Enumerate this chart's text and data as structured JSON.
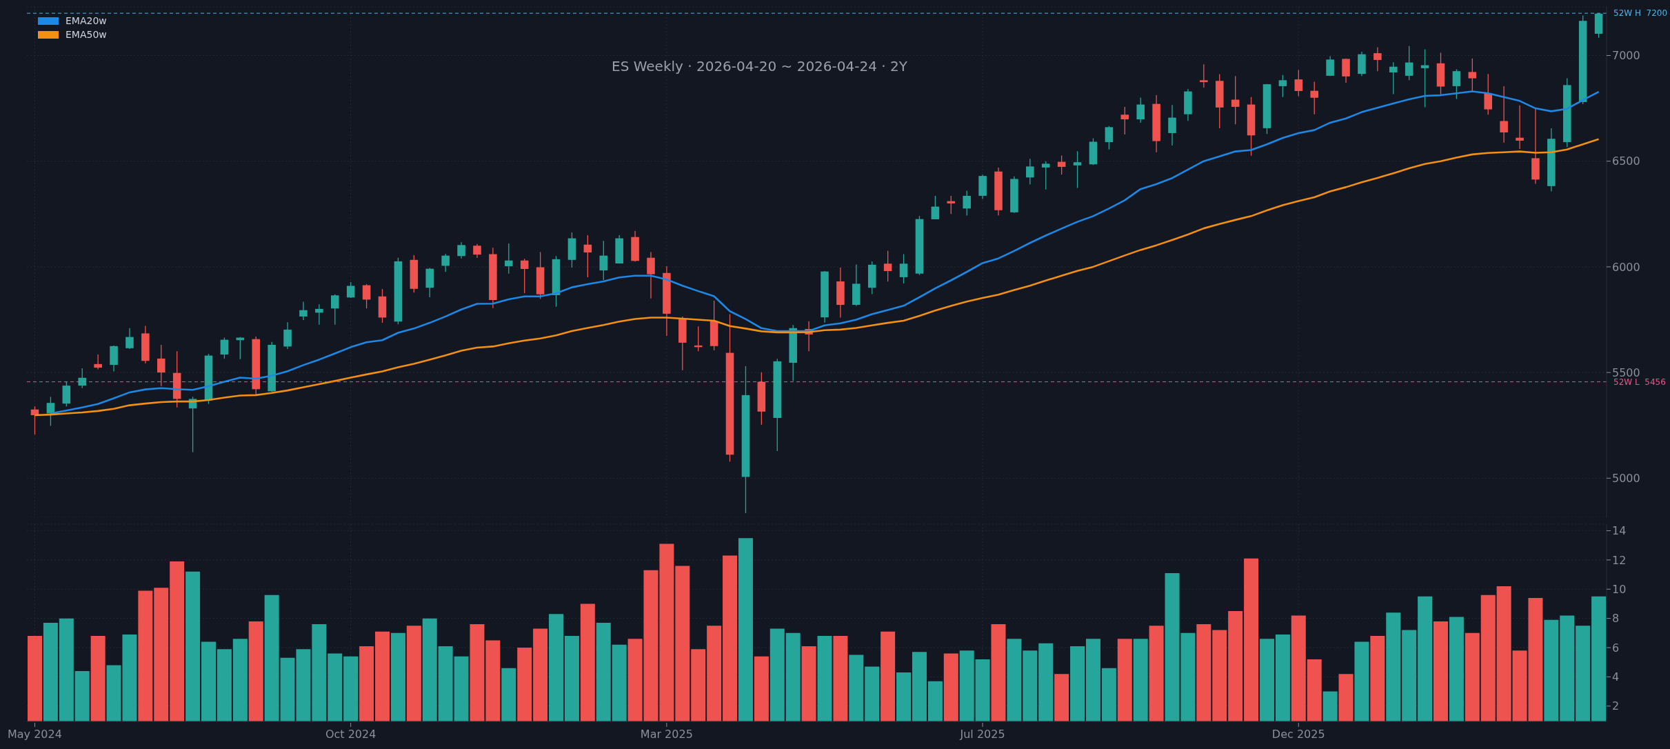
{
  "chart_data": [
    {
      "type": "candlestick",
      "title": "ES Weekly · 2026-04-20 ~ 2026-04-24 · 2Y",
      "categories": [
        null,
        null,
        null,
        null,
        null,
        null,
        null,
        null,
        null,
        null,
        null,
        null,
        null,
        null,
        null,
        null,
        null,
        null,
        null,
        null,
        null,
        null,
        null,
        null,
        null,
        null,
        null,
        null,
        null,
        null,
        null,
        null,
        null,
        null,
        null,
        null,
        null,
        null,
        null,
        null,
        null,
        null,
        null,
        null,
        null,
        null,
        null,
        null,
        null,
        null,
        null,
        null,
        null,
        null,
        null,
        null,
        null,
        null,
        null,
        null,
        null,
        null,
        null,
        null,
        null,
        null,
        null,
        null,
        null,
        null,
        null,
        null,
        null,
        null,
        null,
        null,
        null,
        null,
        null,
        null,
        null,
        null,
        null,
        null,
        null,
        null,
        null,
        null,
        null,
        null,
        null,
        null,
        null,
        null,
        null,
        null,
        null,
        null,
        null,
        null
      ],
      "ohlc": [
        [
          5325,
          5340,
          5206,
          5298
        ],
        [
          5306,
          5385,
          5248,
          5356
        ],
        [
          5353,
          5456,
          5340,
          5438
        ],
        [
          5438,
          5520,
          5426,
          5475
        ],
        [
          5540,
          5585,
          5515,
          5523
        ],
        [
          5536,
          5628,
          5505,
          5625
        ],
        [
          5615,
          5710,
          5611,
          5668
        ],
        [
          5685,
          5721,
          5543,
          5555
        ],
        [
          5566,
          5631,
          5436,
          5500
        ],
        [
          5498,
          5601,
          5335,
          5375
        ],
        [
          5330,
          5385,
          5123,
          5375
        ],
        [
          5368,
          5588,
          5351,
          5580
        ],
        [
          5585,
          5665,
          5565,
          5655
        ],
        [
          5653,
          5668,
          5563,
          5665
        ],
        [
          5658,
          5670,
          5396,
          5421
        ],
        [
          5411,
          5645,
          5408,
          5631
        ],
        [
          5623,
          5738,
          5611,
          5703
        ],
        [
          5765,
          5835,
          5748,
          5795
        ],
        [
          5783,
          5823,
          5726,
          5801
        ],
        [
          5803,
          5870,
          5726,
          5865
        ],
        [
          5855,
          5928,
          5853,
          5910
        ],
        [
          5913,
          5918,
          5803,
          5845
        ],
        [
          5860,
          5895,
          5735,
          5760
        ],
        [
          5741,
          6043,
          5728,
          6026
        ],
        [
          6033,
          6055,
          5878,
          5896
        ],
        [
          5901,
          5995,
          5856,
          5991
        ],
        [
          6005,
          6061,
          5976,
          6053
        ],
        [
          6051,
          6116,
          6040,
          6103
        ],
        [
          6100,
          6108,
          6043,
          6058
        ],
        [
          6060,
          6090,
          5805,
          5843
        ],
        [
          6003,
          6111,
          5968,
          6030
        ],
        [
          6030,
          6038,
          5876,
          5990
        ],
        [
          5998,
          6070,
          5848,
          5870
        ],
        [
          5866,
          6051,
          5811,
          6036
        ],
        [
          6033,
          6163,
          5996,
          6135
        ],
        [
          6105,
          6150,
          5951,
          6068
        ],
        [
          5983,
          6123,
          5938,
          6053
        ],
        [
          6016,
          6150,
          6015,
          6135
        ],
        [
          6141,
          6170,
          6025,
          6028
        ],
        [
          6043,
          6070,
          5850,
          5965
        ],
        [
          5971,
          6003,
          5673,
          5778
        ],
        [
          5755,
          5765,
          5511,
          5641
        ],
        [
          5628,
          5718,
          5601,
          5620
        ],
        [
          5743,
          5840,
          5605,
          5625
        ],
        [
          5593,
          5776,
          5078,
          5111
        ],
        [
          5006,
          5530,
          4835,
          5393
        ],
        [
          5456,
          5501,
          5253,
          5315
        ],
        [
          5285,
          5565,
          5128,
          5553
        ],
        [
          5546,
          5725,
          5460,
          5710
        ],
        [
          5706,
          5743,
          5601,
          5680
        ],
        [
          5761,
          5980,
          5736,
          5978
        ],
        [
          5931,
          5996,
          5760,
          5820
        ],
        [
          5820,
          6011,
          5815,
          5920
        ],
        [
          5901,
          6026,
          5871,
          6010
        ],
        [
          6015,
          6076,
          5930,
          5980
        ],
        [
          5951,
          6060,
          5921,
          6015
        ],
        [
          5968,
          6241,
          5961,
          6226
        ],
        [
          6225,
          6336,
          6225,
          6285
        ],
        [
          6311,
          6336,
          6250,
          6300
        ],
        [
          6276,
          6360,
          6243,
          6336
        ],
        [
          6336,
          6436,
          6321,
          6430
        ],
        [
          6451,
          6470,
          6243,
          6268
        ],
        [
          6258,
          6428,
          6255,
          6416
        ],
        [
          6423,
          6511,
          6390,
          6475
        ],
        [
          6470,
          6500,
          6366,
          6488
        ],
        [
          6497,
          6527,
          6437,
          6473
        ],
        [
          6480,
          6547,
          6373,
          6495
        ],
        [
          6485,
          6608,
          6482,
          6592
        ],
        [
          6590,
          6666,
          6555,
          6661
        ],
        [
          6720,
          6757,
          6626,
          6698
        ],
        [
          6698,
          6801,
          6682,
          6768
        ],
        [
          6771,
          6812,
          6542,
          6595
        ],
        [
          6633,
          6766,
          6574,
          6706
        ],
        [
          6722,
          6842,
          6691,
          6830
        ],
        [
          6883,
          6958,
          6848,
          6874
        ],
        [
          6880,
          6912,
          6656,
          6754
        ],
        [
          6791,
          6903,
          6674,
          6757
        ],
        [
          6768,
          6803,
          6526,
          6622
        ],
        [
          6656,
          6865,
          6629,
          6864
        ],
        [
          6855,
          6908,
          6803,
          6883
        ],
        [
          6887,
          6931,
          6807,
          6832
        ],
        [
          6833,
          6876,
          6722,
          6800
        ],
        [
          6904,
          6997,
          6903,
          6981
        ],
        [
          6984,
          6986,
          6871,
          6901
        ],
        [
          6913,
          7018,
          6903,
          7006
        ],
        [
          7011,
          7039,
          6926,
          6979
        ],
        [
          6920,
          6968,
          6817,
          6947
        ],
        [
          6904,
          7045,
          6883,
          6967
        ],
        [
          6940,
          7029,
          6755,
          6954
        ],
        [
          6963,
          7013,
          6816,
          6853
        ],
        [
          6855,
          6935,
          6794,
          6926
        ],
        [
          6922,
          6986,
          6830,
          6892
        ],
        [
          6821,
          6913,
          6720,
          6745
        ],
        [
          6690,
          6855,
          6588,
          6636
        ],
        [
          6611,
          6764,
          6558,
          6597
        ],
        [
          6514,
          6750,
          6393,
          6413
        ],
        [
          6382,
          6656,
          6357,
          6606
        ],
        [
          6590,
          6892,
          6567,
          6860
        ],
        [
          6780,
          7189,
          6770,
          7164
        ],
        [
          7103,
          7200,
          7084,
          7198
        ]
      ],
      "colors": [
        "#ef5350",
        "#26a69a",
        "#26a69a",
        "#26a69a",
        "#ef5350",
        "#26a69a",
        "#26a69a",
        "#ef5350",
        "#ef5350",
        "#ef5350",
        "#26a69a",
        "#26a69a",
        "#26a69a",
        "#26a69a",
        "#ef5350",
        "#26a69a",
        "#26a69a",
        "#26a69a",
        "#26a69a",
        "#26a69a",
        "#26a69a",
        "#ef5350",
        "#ef5350",
        "#26a69a",
        "#ef5350",
        "#26a69a",
        "#26a69a",
        "#26a69a",
        "#ef5350",
        "#ef5350",
        "#26a69a",
        "#ef5350",
        "#ef5350",
        "#26a69a",
        "#26a69a",
        "#ef5350",
        "#26a69a",
        "#26a69a",
        "#ef5350",
        "#ef5350",
        "#ef5350",
        "#ef5350",
        "#ef5350",
        "#ef5350",
        "#ef5350",
        "#26a69a",
        "#ef5350",
        "#26a69a",
        "#26a69a",
        "#ef5350",
        "#26a69a",
        "#ef5350",
        "#26a69a",
        "#26a69a",
        "#ef5350",
        "#26a69a",
        "#26a69a",
        "#26a69a",
        "#ef5350",
        "#26a69a",
        "#26a69a",
        "#ef5350",
        "#26a69a",
        "#26a69a",
        "#26a69a",
        "#ef5350",
        "#26a69a",
        "#26a69a",
        "#26a69a",
        "#ef5350",
        "#26a69a",
        "#ef5350",
        "#26a69a",
        "#26a69a",
        "#ef5350",
        "#ef5350",
        "#ef5350",
        "#ef5350",
        "#26a69a",
        "#26a69a",
        "#ef5350",
        "#ef5350",
        "#26a69a",
        "#ef5350",
        "#26a69a",
        "#ef5350",
        "#26a69a",
        "#26a69a",
        "#26a69a",
        "#ef5350",
        "#26a69a",
        "#ef5350",
        "#ef5350",
        "#ef5350",
        "#ef5350",
        "#ef5350",
        "#26a69a",
        "#26a69a",
        "#26a69a",
        "#26a69a"
      ],
      "series": [
        {
          "type": "line",
          "name": "EMA20w",
          "color": "#1e88e5",
          "values": [
            null,
            5306,
            5320,
            5335,
            5351,
            5378,
            5406,
            5420,
            5426,
            5421,
            5418,
            5435,
            5456,
            5476,
            5471,
            5485,
            5506,
            5535,
            5561,
            5590,
            5620,
            5643,
            5653,
            5688,
            5708,
            5735,
            5765,
            5798,
            5825,
            5826,
            5846,
            5860,
            5860,
            5875,
            5903,
            5918,
            5931,
            5950,
            5958,
            5958,
            5940,
            5911,
            5885,
            5861,
            5790,
            5753,
            5710,
            5696,
            5696,
            5696,
            5723,
            5733,
            5750,
            5776,
            5796,
            5816,
            5856,
            5898,
            5936,
            5976,
            6018,
            6040,
            6075,
            6113,
            6148,
            6181,
            6213,
            6240,
            6276,
            6315,
            6368,
            6391,
            6420,
            6460,
            6500,
            6523,
            6546,
            6553,
            6580,
            6610,
            6633,
            6647,
            6682,
            6702,
            6732,
            6753,
            6773,
            6793,
            6809,
            6812,
            6821,
            6830,
            6821,
            6803,
            6785,
            6750,
            6736,
            6748,
            6789,
            6828
          ]
        },
        {
          "type": "line",
          "name": "EMA50w",
          "color": "#f39012",
          "values": [
            5298,
            5301,
            5306,
            5311,
            5318,
            5328,
            5345,
            5353,
            5360,
            5363,
            5363,
            5370,
            5381,
            5391,
            5393,
            5403,
            5415,
            5430,
            5445,
            5460,
            5476,
            5491,
            5505,
            5525,
            5541,
            5561,
            5581,
            5603,
            5618,
            5623,
            5638,
            5651,
            5661,
            5676,
            5696,
            5711,
            5725,
            5741,
            5753,
            5760,
            5760,
            5755,
            5750,
            5745,
            5720,
            5708,
            5695,
            5690,
            5690,
            5691,
            5700,
            5703,
            5711,
            5723,
            5735,
            5745,
            5768,
            5793,
            5815,
            5836,
            5853,
            5868,
            5890,
            5911,
            5935,
            5958,
            5981,
            6000,
            6027,
            6054,
            6080,
            6102,
            6127,
            6153,
            6182,
            6203,
            6222,
            6240,
            6267,
            6292,
            6311,
            6329,
            6357,
            6377,
            6400,
            6421,
            6443,
            6466,
            6487,
            6500,
            6517,
            6532,
            6539,
            6542,
            6546,
            6540,
            6542,
            6555,
            6580,
            6604
          ]
        }
      ],
      "ylim": [
        4815,
        7230
      ],
      "yticks": [
        5000,
        5500,
        6000,
        6500,
        7000
      ],
      "ref_lines": [
        {
          "axis": "y",
          "value": 7200,
          "label": "52W H  7200",
          "color": "#4fb3e8",
          "line_style": "dashed"
        },
        {
          "axis": "y",
          "value": 5456,
          "label": "52W L  5456",
          "color": "#e8578a",
          "line_style": "dashed"
        }
      ],
      "legend": "top left",
      "grid": true,
      "tick_labels": "y"
    },
    {
      "type": "bar",
      "categories": [
        "May 2024",
        null,
        null,
        null,
        null,
        null,
        null,
        null,
        null,
        null,
        null,
        null,
        null,
        null,
        null,
        null,
        null,
        null,
        null,
        null,
        "Oct 2024",
        null,
        null,
        null,
        null,
        null,
        null,
        null,
        null,
        null,
        null,
        null,
        null,
        null,
        null,
        null,
        null,
        null,
        null,
        null,
        "Mar 2025",
        null,
        null,
        null,
        null,
        null,
        null,
        null,
        null,
        null,
        null,
        null,
        null,
        null,
        null,
        null,
        null,
        null,
        null,
        null,
        "Jul 2025",
        null,
        null,
        null,
        null,
        null,
        null,
        null,
        null,
        null,
        null,
        null,
        null,
        null,
        null,
        null,
        null,
        null,
        null,
        null,
        "Dec 2025",
        null,
        null,
        null,
        null,
        null,
        null,
        null,
        null,
        null,
        null,
        null,
        null,
        null,
        null,
        null,
        null,
        null,
        null,
        null
      ],
      "values": [
        6.8,
        7.7,
        8.0,
        4.4,
        6.8,
        4.8,
        6.9,
        9.9,
        10.1,
        11.9,
        11.2,
        6.4,
        5.9,
        6.6,
        7.8,
        9.6,
        5.3,
        5.9,
        7.6,
        5.6,
        5.4,
        6.1,
        7.1,
        7.0,
        7.5,
        8.0,
        6.1,
        5.4,
        7.6,
        6.5,
        4.6,
        6.0,
        7.3,
        8.3,
        6.8,
        9.0,
        7.7,
        6.2,
        6.6,
        11.3,
        13.1,
        11.6,
        5.9,
        7.5,
        12.3,
        13.5,
        5.4,
        7.3,
        7.0,
        6.1,
        6.8,
        6.8,
        5.5,
        4.7,
        7.1,
        4.3,
        5.7,
        3.7,
        5.6,
        5.8,
        5.2,
        7.6,
        6.6,
        5.8,
        6.3,
        4.2,
        6.1,
        6.6,
        4.6,
        6.6,
        6.6,
        7.5,
        11.1,
        7.0,
        7.6,
        7.2,
        8.5,
        12.1,
        6.6,
        6.9,
        8.2,
        5.2,
        3.0,
        4.2,
        6.4,
        6.8,
        8.4,
        7.2,
        9.5,
        7.8,
        8.1,
        7.0,
        9.6,
        10.2,
        5.8,
        9.4,
        7.9,
        8.2,
        7.5,
        9.5
      ],
      "colors": [
        "#ef5350",
        "#26a69a",
        "#26a69a",
        "#26a69a",
        "#ef5350",
        "#26a69a",
        "#26a69a",
        "#ef5350",
        "#ef5350",
        "#ef5350",
        "#26a69a",
        "#26a69a",
        "#26a69a",
        "#26a69a",
        "#ef5350",
        "#26a69a",
        "#26a69a",
        "#26a69a",
        "#26a69a",
        "#26a69a",
        "#26a69a",
        "#ef5350",
        "#ef5350",
        "#26a69a",
        "#ef5350",
        "#26a69a",
        "#26a69a",
        "#26a69a",
        "#ef5350",
        "#ef5350",
        "#26a69a",
        "#ef5350",
        "#ef5350",
        "#26a69a",
        "#26a69a",
        "#ef5350",
        "#26a69a",
        "#26a69a",
        "#ef5350",
        "#ef5350",
        "#ef5350",
        "#ef5350",
        "#ef5350",
        "#ef5350",
        "#ef5350",
        "#26a69a",
        "#ef5350",
        "#26a69a",
        "#26a69a",
        "#ef5350",
        "#26a69a",
        "#ef5350",
        "#26a69a",
        "#26a69a",
        "#ef5350",
        "#26a69a",
        "#26a69a",
        "#26a69a",
        "#ef5350",
        "#26a69a",
        "#26a69a",
        "#ef5350",
        "#26a69a",
        "#26a69a",
        "#26a69a",
        "#ef5350",
        "#26a69a",
        "#26a69a",
        "#26a69a",
        "#ef5350",
        "#26a69a",
        "#ef5350",
        "#26a69a",
        "#26a69a",
        "#ef5350",
        "#ef5350",
        "#ef5350",
        "#ef5350",
        "#26a69a",
        "#26a69a",
        "#ef5350",
        "#ef5350",
        "#26a69a",
        "#ef5350",
        "#26a69a",
        "#ef5350",
        "#26a69a",
        "#26a69a",
        "#26a69a",
        "#ef5350",
        "#26a69a",
        "#ef5350",
        "#ef5350",
        "#ef5350",
        "#ef5350",
        "#ef5350",
        "#26a69a",
        "#26a69a",
        "#26a69a",
        "#26a69a"
      ],
      "ylim": [
        0.95,
        14.45
      ],
      "yticks": [
        2,
        4,
        6,
        8,
        10,
        12,
        14
      ],
      "grid": true
    }
  ]
}
